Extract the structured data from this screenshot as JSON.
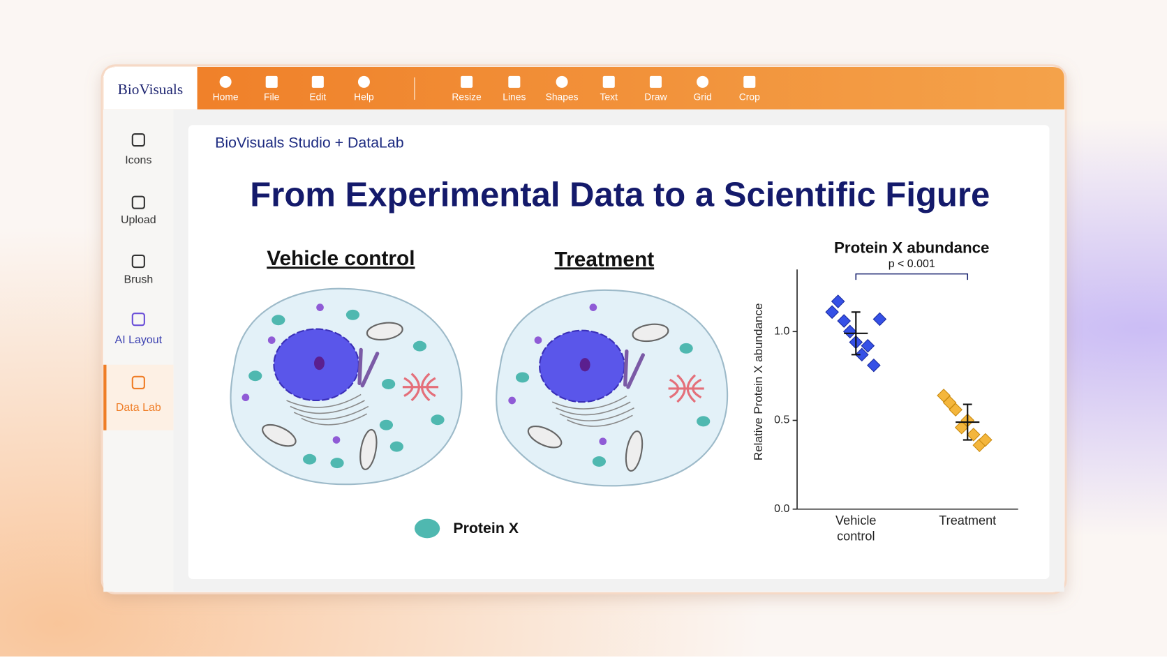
{
  "app": {
    "logo": "BioVisuals",
    "toolbar": [
      "Home",
      "File",
      "Edit",
      "Help",
      "Resize",
      "Lines",
      "Shapes",
      "Text",
      "Draw",
      "Grid",
      "Crop"
    ],
    "sidebar": [
      {
        "label": "Icons"
      },
      {
        "label": "Upload"
      },
      {
        "label": "Brush"
      },
      {
        "label": "AI Layout"
      },
      {
        "label": "Data Lab",
        "active": true
      }
    ]
  },
  "canvas": {
    "header": "BioVisuals Studio + DataLab",
    "title": "From Experimental Data to a Scientific Figure",
    "panels": [
      "Vehicle control",
      "Treatment"
    ],
    "legend": "Protein X"
  },
  "chart_data": {
    "type": "scatter",
    "title": "Protein X abundance",
    "y_label": "Relative Protein X abundance",
    "categories": [
      "Vehicle control",
      "Treatment"
    ],
    "groups": [
      {
        "color": "#3550e6",
        "values": [
          1.11,
          1.17,
          1.06,
          1.0,
          0.94,
          0.87,
          0.92,
          0.81,
          1.07
        ],
        "mean": 0.99,
        "error": 0.12
      },
      {
        "color": "#f4b63c",
        "values": [
          0.64,
          0.6,
          0.56,
          0.46,
          0.5,
          0.42,
          0.36,
          0.39
        ],
        "mean": 0.49,
        "error": 0.1
      }
    ],
    "annotation": "p < 0.001",
    "ylim": [
      0,
      1.35
    ],
    "yticks": [
      {
        "value": 0,
        "label": "0.0"
      },
      0.5,
      {
        "value": 1,
        "label": "1.0"
      }
    ]
  }
}
